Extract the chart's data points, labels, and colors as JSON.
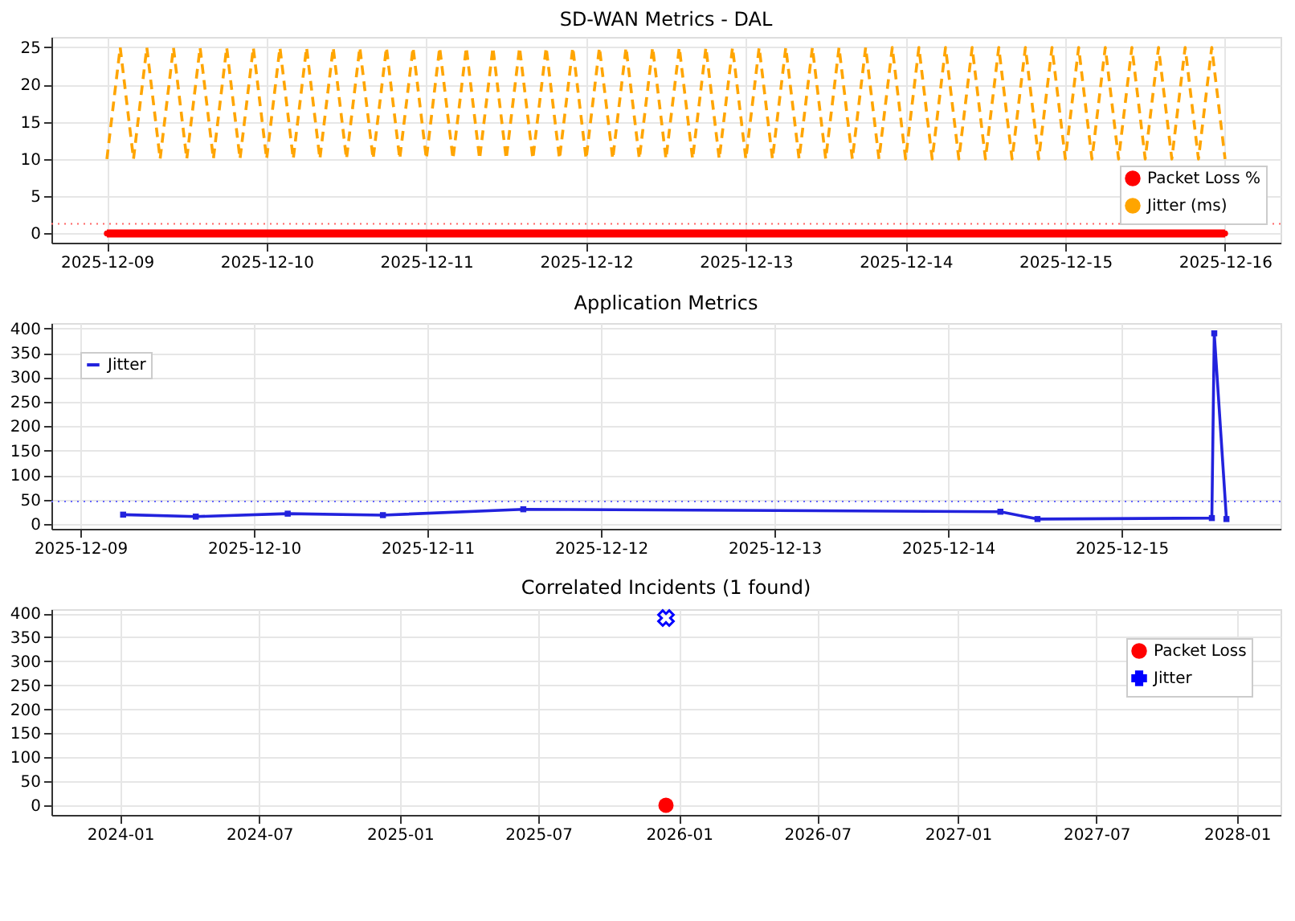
{
  "chart_data": [
    {
      "type": "line",
      "title": "SD-WAN Metrics - DAL",
      "x": [
        "2025-12-09T00:00",
        "2025-12-09T02:00",
        "2025-12-09T04:00",
        "2025-12-09T06:00",
        "2025-12-09T08:00",
        "2025-12-09T10:00",
        "2025-12-09T12:00",
        "2025-12-09T14:00",
        "2025-12-09T16:00",
        "2025-12-09T18:00",
        "2025-12-09T20:00",
        "2025-12-09T22:00",
        "2025-12-10T00:00",
        "2025-12-10T02:00",
        "2025-12-10T04:00",
        "2025-12-10T06:00",
        "2025-12-10T08:00",
        "2025-12-10T10:00",
        "2025-12-10T12:00",
        "2025-12-10T14:00",
        "2025-12-10T16:00",
        "2025-12-10T18:00",
        "2025-12-10T20:00",
        "2025-12-10T22:00",
        "2025-12-11T00:00",
        "2025-12-11T02:00",
        "2025-12-11T04:00",
        "2025-12-11T06:00",
        "2025-12-11T08:00",
        "2025-12-11T10:00",
        "2025-12-11T12:00",
        "2025-12-11T14:00",
        "2025-12-11T16:00",
        "2025-12-11T18:00",
        "2025-12-11T20:00",
        "2025-12-11T22:00",
        "2025-12-12T00:00",
        "2025-12-12T02:00",
        "2025-12-12T04:00",
        "2025-12-12T06:00",
        "2025-12-12T08:00",
        "2025-12-12T10:00",
        "2025-12-12T12:00",
        "2025-12-12T14:00",
        "2025-12-12T16:00",
        "2025-12-12T18:00",
        "2025-12-12T20:00",
        "2025-12-12T22:00",
        "2025-12-13T00:00",
        "2025-12-13T02:00",
        "2025-12-13T04:00",
        "2025-12-13T06:00",
        "2025-12-13T08:00",
        "2025-12-13T10:00",
        "2025-12-13T12:00",
        "2025-12-13T14:00",
        "2025-12-13T16:00",
        "2025-12-13T18:00",
        "2025-12-13T20:00",
        "2025-12-13T22:00",
        "2025-12-14T00:00",
        "2025-12-14T02:00",
        "2025-12-14T04:00",
        "2025-12-14T06:00",
        "2025-12-14T08:00",
        "2025-12-14T10:00",
        "2025-12-14T12:00",
        "2025-12-14T14:00",
        "2025-12-14T16:00",
        "2025-12-14T18:00",
        "2025-12-14T20:00",
        "2025-12-14T22:00",
        "2025-12-15T00:00",
        "2025-12-15T02:00",
        "2025-12-15T04:00",
        "2025-12-15T06:00",
        "2025-12-15T08:00",
        "2025-12-15T10:00",
        "2025-12-15T12:00",
        "2025-12-15T14:00",
        "2025-12-15T16:00",
        "2025-12-15T18:00",
        "2025-12-15T20:00",
        "2025-12-15T22:00",
        "2025-12-16T00:00"
      ],
      "series": [
        {
          "name": "Packet Loss %",
          "color": "#ff0000",
          "marker": "circle",
          "line_style": "solid",
          "values": [
            0,
            0,
            0,
            0,
            0,
            0,
            0,
            0,
            0,
            0,
            0,
            0,
            0,
            0,
            0,
            0,
            0,
            0,
            0,
            0,
            0,
            0,
            0,
            0,
            0,
            0,
            0,
            0,
            0,
            0,
            0,
            0,
            0,
            0,
            0,
            0,
            0,
            0,
            0,
            0,
            0,
            0,
            0,
            0,
            0,
            0,
            0,
            0,
            0,
            0,
            0,
            0,
            0,
            0,
            0,
            0,
            0,
            0,
            0,
            0,
            0,
            0,
            0,
            0,
            0,
            0,
            0,
            0,
            0,
            0,
            0,
            0,
            0,
            0,
            0,
            0,
            0,
            0,
            0,
            0,
            0,
            0,
            0,
            0,
            0
          ]
        },
        {
          "name": "Jitter (ms)",
          "color": "#ffa500",
          "marker": "none",
          "line_style": "dashed",
          "values": [
            10,
            25,
            10,
            25,
            10,
            25,
            10,
            25,
            10,
            25,
            10,
            25,
            10,
            25,
            10,
            25,
            10,
            25,
            10,
            25,
            10,
            25,
            10,
            25,
            10,
            25,
            10,
            25,
            10,
            25,
            10,
            25,
            10,
            25,
            10,
            25,
            10,
            25,
            10,
            25,
            10,
            25,
            10,
            25,
            10,
            25,
            10,
            25,
            10,
            25,
            10,
            25,
            10,
            25,
            10,
            25,
            10,
            25,
            10,
            25,
            10,
            25,
            10,
            25,
            10,
            25,
            10,
            25,
            10,
            25,
            10,
            25,
            10,
            25,
            10,
            25,
            10,
            25,
            10,
            25,
            10,
            25,
            10,
            25,
            10
          ]
        }
      ],
      "xlim": [
        "2025-12-08T15:40",
        "2025-12-16T08:20"
      ],
      "xticks": [
        {
          "value": "2025-12-09",
          "label": "2025-12-09"
        },
        {
          "value": "2025-12-10",
          "label": "2025-12-10"
        },
        {
          "value": "2025-12-11",
          "label": "2025-12-11"
        },
        {
          "value": "2025-12-12",
          "label": "2025-12-12"
        },
        {
          "value": "2025-12-13",
          "label": "2025-12-13"
        },
        {
          "value": "2025-12-14",
          "label": "2025-12-14"
        },
        {
          "value": "2025-12-15",
          "label": "2025-12-15"
        },
        {
          "value": "2025-12-16",
          "label": "2025-12-16"
        }
      ],
      "ylim": [
        -1.25,
        26.4
      ],
      "yticks": [
        0,
        5,
        10,
        15,
        20,
        25
      ],
      "ref_lines": [
        {
          "axis": "y",
          "value": 1.3,
          "color": "#ff6666",
          "line_style": "dotted"
        }
      ],
      "grid": true,
      "legend": "right"
    },
    {
      "type": "line",
      "title": "Application Metrics",
      "series": [
        {
          "name": "Jitter",
          "color": "#2222dd",
          "marker": "square",
          "line_style": "solid",
          "x": [
            "2025-12-09T05:55",
            "2025-12-09T15:58",
            "2025-12-10T04:41",
            "2025-12-10T17:51",
            "2025-12-11T13:16",
            "2025-12-14T07:15",
            "2025-12-14T12:23",
            "2025-12-15T12:30",
            "2025-12-15T12:50",
            "2025-12-15T14:31"
          ],
          "values": [
            19,
            15,
            21,
            18,
            30,
            25,
            10,
            12,
            390,
            10
          ]
        }
      ],
      "xlim": [
        "2025-12-08T20:00",
        "2025-12-15T22:00"
      ],
      "xticks": [
        {
          "value": "2025-12-09",
          "label": "2025-12-09"
        },
        {
          "value": "2025-12-10",
          "label": "2025-12-10"
        },
        {
          "value": "2025-12-11",
          "label": "2025-12-11"
        },
        {
          "value": "2025-12-12",
          "label": "2025-12-12"
        },
        {
          "value": "2025-12-13",
          "label": "2025-12-13"
        },
        {
          "value": "2025-12-14",
          "label": "2025-12-14"
        },
        {
          "value": "2025-12-15",
          "label": "2025-12-15"
        }
      ],
      "ylim": [
        -10,
        411
      ],
      "yticks": [
        0,
        50,
        100,
        150,
        200,
        250,
        300,
        350,
        400
      ],
      "ref_lines": [
        {
          "axis": "y",
          "value": 46,
          "color": "#6666ff",
          "line_style": "dotted"
        }
      ],
      "grid": true,
      "legend": "top left"
    },
    {
      "type": "scatter",
      "title": "Correlated Incidents (1 found)",
      "series": [
        {
          "name": "Packet Loss",
          "color": "#ff0000",
          "marker": "circle",
          "x": [
            "2025-12-15"
          ],
          "values": [
            0
          ]
        },
        {
          "name": "Jitter",
          "color": "#0000ff",
          "marker": "cross",
          "x": [
            "2025-12-15"
          ],
          "values": [
            390
          ]
        }
      ],
      "xlim": [
        "2023-10-03",
        "2028-02-27"
      ],
      "xticks": [
        {
          "value": "2024-01-01",
          "label": "2024-01"
        },
        {
          "value": "2024-07-01",
          "label": "2024-07"
        },
        {
          "value": "2025-01-01",
          "label": "2025-01"
        },
        {
          "value": "2025-07-01",
          "label": "2025-07"
        },
        {
          "value": "2026-01-01",
          "label": "2026-01"
        },
        {
          "value": "2026-07-01",
          "label": "2026-07"
        },
        {
          "value": "2027-01-01",
          "label": "2027-01"
        },
        {
          "value": "2027-07-01",
          "label": "2027-07"
        },
        {
          "value": "2028-01-01",
          "label": "2028-01"
        }
      ],
      "ylim": [
        -20,
        408.5
      ],
      "yticks": [
        0,
        50,
        100,
        150,
        200,
        250,
        300,
        350,
        400
      ],
      "grid": true,
      "legend": "top right"
    }
  ]
}
